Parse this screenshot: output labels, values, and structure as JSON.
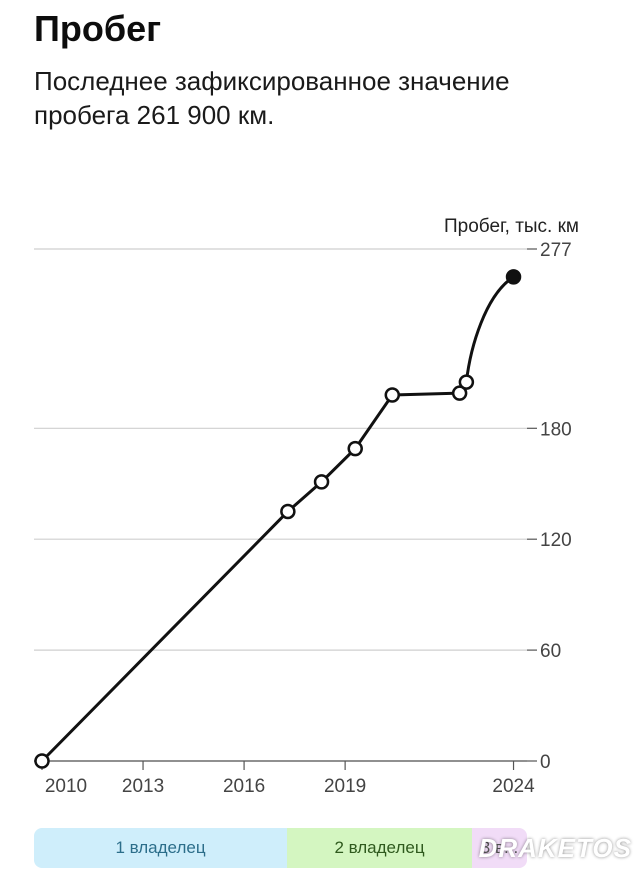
{
  "header": {
    "title": "Пробег",
    "subtitle": "Последнее зафиксированное значение пробега 261 900 км."
  },
  "chart_data": {
    "type": "line",
    "ylabel": "Пробег, тыс. км",
    "x_ticks": [
      "2010",
      "2013",
      "2016",
      "2019",
      "2024"
    ],
    "x_tick_values": [
      2010,
      2013,
      2016,
      2019,
      2024
    ],
    "y_ticks": [
      "0",
      "60",
      "120",
      "180",
      "277"
    ],
    "y_tick_values": [
      0,
      60,
      120,
      180,
      277
    ],
    "xlim": [
      2010,
      2024.4
    ],
    "ylim": [
      0,
      277
    ],
    "grid": true,
    "points": [
      {
        "x": 2010.0,
        "y": 0,
        "latest": false
      },
      {
        "x": 2017.3,
        "y": 135,
        "latest": false
      },
      {
        "x": 2018.3,
        "y": 151,
        "latest": false
      },
      {
        "x": 2019.3,
        "y": 169,
        "latest": false
      },
      {
        "x": 2020.4,
        "y": 198,
        "latest": false
      },
      {
        "x": 2022.4,
        "y": 199,
        "latest": false
      },
      {
        "x": 2022.6,
        "y": 205,
        "latest": false
      },
      {
        "x": 2024.0,
        "y": 261.9,
        "latest": true
      }
    ]
  },
  "owners": [
    {
      "label": "1 владелец",
      "color": "#cfeefb"
    },
    {
      "label": "2 владелец",
      "color": "#d4f6c1"
    },
    {
      "label": "3 в...",
      "color": "#f1dcf7"
    }
  ],
  "watermark": "DRAKETOS"
}
